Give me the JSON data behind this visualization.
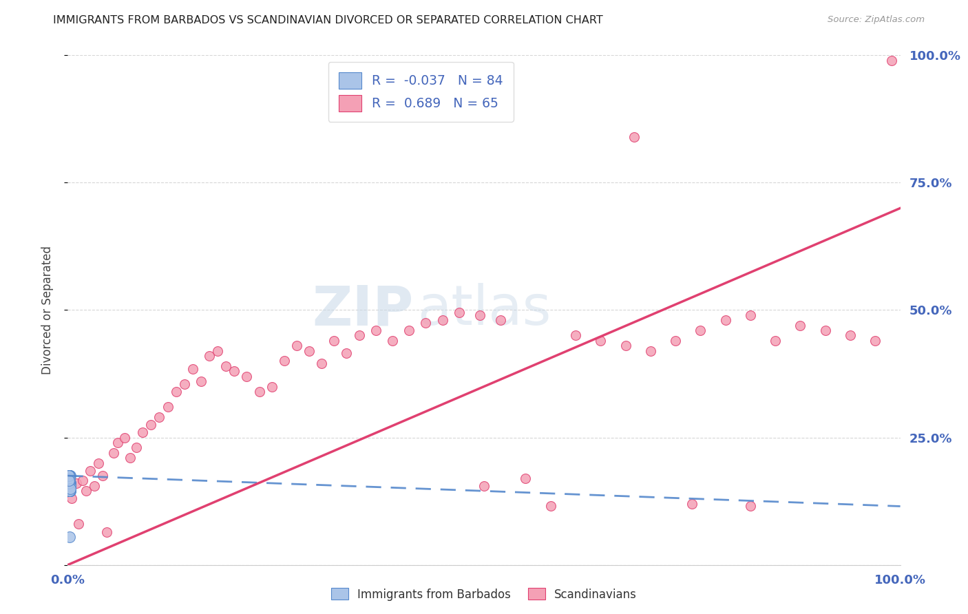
{
  "title": "IMMIGRANTS FROM BARBADOS VS SCANDINAVIAN DIVORCED OR SEPARATED CORRELATION CHART",
  "source": "Source: ZipAtlas.com",
  "ylabel": "Divorced or Separated",
  "ytick_labels": [
    "",
    "25.0%",
    "50.0%",
    "75.0%",
    "100.0%"
  ],
  "ytick_positions": [
    0.0,
    0.25,
    0.5,
    0.75,
    1.0
  ],
  "xlim": [
    0.0,
    1.0
  ],
  "ylim": [
    0.0,
    1.0
  ],
  "barbados_R": -0.037,
  "barbados_N": 84,
  "scandinavian_R": 0.689,
  "scandinavian_N": 65,
  "barbados_color": "#aac4e8",
  "scandinavian_color": "#f4a0b5",
  "barbados_line_color": "#5588cc",
  "scandinavian_line_color": "#e04070",
  "watermark_zip": "ZIP",
  "watermark_atlas": "atlas",
  "background_color": "#ffffff",
  "grid_color": "#cccccc",
  "axis_color": "#4466bb",
  "legend_edge_color": "#dddddd",
  "barbados_scatter_x": [
    0.001,
    0.002,
    0.001,
    0.003,
    0.001,
    0.002,
    0.001,
    0.003,
    0.002,
    0.001,
    0.003,
    0.001,
    0.002,
    0.001,
    0.002,
    0.001,
    0.003,
    0.002,
    0.001,
    0.002,
    0.001,
    0.003,
    0.001,
    0.002,
    0.001,
    0.002,
    0.001,
    0.003,
    0.002,
    0.001,
    0.002,
    0.001,
    0.003,
    0.001,
    0.002,
    0.001,
    0.003,
    0.002,
    0.001,
    0.002,
    0.001,
    0.003,
    0.001,
    0.002,
    0.001,
    0.002,
    0.003,
    0.001,
    0.002,
    0.001,
    0.003,
    0.002,
    0.001,
    0.002,
    0.001,
    0.003,
    0.002,
    0.001,
    0.002,
    0.001,
    0.003,
    0.001,
    0.002,
    0.001,
    0.002,
    0.003,
    0.001,
    0.002,
    0.001,
    0.002,
    0.001,
    0.003,
    0.001,
    0.002,
    0.001,
    0.002,
    0.003,
    0.001,
    0.002,
    0.001,
    0.002,
    0.001,
    0.003,
    0.001
  ],
  "barbados_scatter_y": [
    0.155,
    0.165,
    0.145,
    0.16,
    0.17,
    0.15,
    0.175,
    0.155,
    0.145,
    0.165,
    0.15,
    0.17,
    0.16,
    0.155,
    0.145,
    0.175,
    0.15,
    0.16,
    0.165,
    0.155,
    0.17,
    0.145,
    0.16,
    0.175,
    0.155,
    0.145,
    0.17,
    0.16,
    0.155,
    0.175,
    0.145,
    0.165,
    0.155,
    0.17,
    0.16,
    0.15,
    0.175,
    0.155,
    0.165,
    0.145,
    0.16,
    0.155,
    0.175,
    0.15,
    0.165,
    0.145,
    0.16,
    0.17,
    0.155,
    0.175,
    0.145,
    0.165,
    0.16,
    0.15,
    0.17,
    0.155,
    0.145,
    0.175,
    0.16,
    0.155,
    0.15,
    0.17,
    0.165,
    0.145,
    0.175,
    0.155,
    0.16,
    0.15,
    0.17,
    0.165,
    0.155,
    0.145,
    0.175,
    0.16,
    0.15,
    0.17,
    0.155,
    0.165,
    0.145,
    0.16,
    0.055,
    0.175,
    0.15,
    0.165
  ],
  "scandinavian_scatter_x": [
    0.005,
    0.01,
    0.013,
    0.018,
    0.022,
    0.027,
    0.032,
    0.037,
    0.042,
    0.047,
    0.055,
    0.06,
    0.068,
    0.075,
    0.082,
    0.09,
    0.1,
    0.11,
    0.12,
    0.13,
    0.14,
    0.15,
    0.16,
    0.17,
    0.18,
    0.19,
    0.2,
    0.215,
    0.23,
    0.245,
    0.26,
    0.275,
    0.29,
    0.305,
    0.32,
    0.335,
    0.35,
    0.37,
    0.39,
    0.41,
    0.43,
    0.45,
    0.47,
    0.495,
    0.52,
    0.55,
    0.58,
    0.61,
    0.64,
    0.67,
    0.7,
    0.73,
    0.76,
    0.79,
    0.82,
    0.85,
    0.88,
    0.91,
    0.94,
    0.97,
    0.68,
    0.75,
    0.82,
    0.5,
    0.99
  ],
  "scandinavian_scatter_y": [
    0.13,
    0.16,
    0.08,
    0.165,
    0.145,
    0.185,
    0.155,
    0.2,
    0.175,
    0.065,
    0.22,
    0.24,
    0.25,
    0.21,
    0.23,
    0.26,
    0.275,
    0.29,
    0.31,
    0.34,
    0.355,
    0.385,
    0.36,
    0.41,
    0.42,
    0.39,
    0.38,
    0.37,
    0.34,
    0.35,
    0.4,
    0.43,
    0.42,
    0.395,
    0.44,
    0.415,
    0.45,
    0.46,
    0.44,
    0.46,
    0.475,
    0.48,
    0.495,
    0.49,
    0.48,
    0.17,
    0.115,
    0.45,
    0.44,
    0.43,
    0.42,
    0.44,
    0.46,
    0.48,
    0.49,
    0.44,
    0.47,
    0.46,
    0.45,
    0.44,
    0.84,
    0.12,
    0.115,
    0.155,
    0.99
  ],
  "barbados_marker_size": 130,
  "scandinavian_marker_size": 100,
  "blue_line_x_start": 0.0,
  "blue_line_x_end": 1.0,
  "blue_line_y_start": 0.175,
  "blue_line_y_end": 0.115,
  "pink_line_x_start": 0.0,
  "pink_line_x_end": 1.0,
  "pink_line_y_start": 0.05,
  "pink_line_y_end": 0.7
}
